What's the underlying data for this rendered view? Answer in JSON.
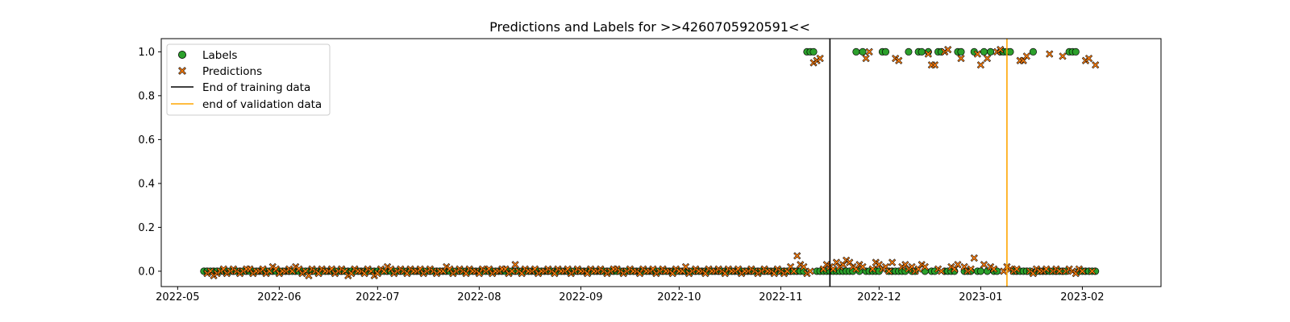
{
  "chart_data": {
    "type": "scatter",
    "title": "Predictions and Labels for >>4260705920591<<",
    "xlabel": "",
    "ylabel": "",
    "x_range": [
      "2022-04-26",
      "2023-02-25"
    ],
    "y_range": [
      -0.07,
      1.06
    ],
    "y_ticks": [
      0.0,
      0.2,
      0.4,
      0.6,
      0.8,
      1.0
    ],
    "y_tick_labels": [
      "0.0",
      "0.2",
      "0.4",
      "0.6",
      "0.8",
      "1.0"
    ],
    "x_ticks": [
      "2022-05-01",
      "2022-06-01",
      "2022-07-01",
      "2022-08-01",
      "2022-09-01",
      "2022-10-01",
      "2022-11-01",
      "2022-12-01",
      "2023-01-01",
      "2023-02-01"
    ],
    "x_tick_labels": [
      "2022-05",
      "2022-06",
      "2022-07",
      "2022-08",
      "2022-09",
      "2022-10",
      "2022-11",
      "2022-12",
      "2023-01",
      "2023-02"
    ],
    "grid": false,
    "legend_position": "top-left",
    "colors": {
      "labels_fill": "#2ca02c",
      "predictions_fill": "#ff7f0e",
      "marker_edge": "#000000",
      "training_line": "#000000",
      "validation_line": "#ffa500"
    },
    "series": [
      {
        "name": "Labels",
        "marker": "circle",
        "color": "#2ca02c",
        "start_date": "2022-05-09",
        "end_date": "2023-02-05",
        "ones": [
          "2022-11-09",
          "2022-11-10",
          "2022-11-11",
          "2022-11-24",
          "2022-11-26",
          "2022-12-02",
          "2022-12-03",
          "2022-12-10",
          "2022-12-13",
          "2022-12-14",
          "2022-12-16",
          "2022-12-19",
          "2022-12-20",
          "2022-12-25",
          "2022-12-26",
          "2022-12-30",
          "2023-01-02",
          "2023-01-04",
          "2023-01-07",
          "2023-01-08",
          "2023-01-09",
          "2023-01-10",
          "2023-01-17",
          "2023-01-28",
          "2023-01-29",
          "2023-01-30"
        ],
        "zero_value": 0.0
      },
      {
        "name": "Predictions",
        "marker": "x",
        "color": "#ff7f0e",
        "start_date": "2022-05-10",
        "end_date": "2023-02-05",
        "high_points": [
          [
            "2022-11-11",
            0.95
          ],
          [
            "2022-11-12",
            0.96
          ],
          [
            "2022-11-13",
            0.97
          ],
          [
            "2022-11-27",
            0.97
          ],
          [
            "2022-11-28",
            1.0
          ],
          [
            "2022-12-06",
            0.97
          ],
          [
            "2022-12-07",
            0.96
          ],
          [
            "2022-12-16",
            0.99
          ],
          [
            "2022-12-17",
            0.94
          ],
          [
            "2022-12-18",
            0.94
          ],
          [
            "2022-12-21",
            1.0
          ],
          [
            "2022-12-22",
            1.01
          ],
          [
            "2022-12-26",
            0.97
          ],
          [
            "2022-12-31",
            0.99
          ],
          [
            "2023-01-01",
            0.94
          ],
          [
            "2023-01-03",
            0.97
          ],
          [
            "2023-01-06",
            1.0
          ],
          [
            "2023-01-07",
            1.01
          ],
          [
            "2023-01-13",
            0.96
          ],
          [
            "2023-01-14",
            0.96
          ],
          [
            "2023-01-15",
            0.98
          ],
          [
            "2023-01-22",
            0.99
          ],
          [
            "2023-01-26",
            0.98
          ],
          [
            "2023-02-02",
            0.96
          ],
          [
            "2023-02-03",
            0.97
          ],
          [
            "2023-02-05",
            0.94
          ]
        ],
        "low_values_first": [
          -0.01,
          0.0,
          -0.02,
          -0.01,
          0.0,
          0.01,
          -0.01,
          0.0,
          0.01,
          0.0,
          -0.01,
          0.0,
          0.01,
          0.01,
          -0.01,
          0.0,
          0.0,
          0.01,
          -0.01,
          0.0,
          0.02,
          0.01,
          -0.01,
          0.0,
          0.0,
          0.01,
          0.0,
          0.02,
          0.01,
          -0.01,
          0.0,
          -0.02,
          0.01,
          0.0,
          -0.01,
          0.01,
          0.0,
          0.0,
          0.01,
          -0.01,
          0.0,
          0.01,
          0.0,
          -0.02,
          -0.01,
          0.01,
          0.0,
          0.0,
          -0.01,
          0.01,
          0.0,
          -0.02,
          -0.01,
          0.01,
          0.0,
          0.02,
          0.01,
          -0.01,
          0.0,
          0.01,
          0.0,
          -0.01,
          0.01,
          0.0,
          0.0,
          0.01,
          -0.01,
          0.0,
          0.01,
          0.0,
          -0.01,
          0.0,
          0.0,
          0.02,
          0.01,
          -0.01,
          0.0,
          0.01,
          0.0,
          -0.01,
          0.01,
          0.0,
          0.0,
          -0.01,
          0.01,
          0.0,
          0.01,
          -0.01,
          0.0,
          0.0,
          0.01,
          0.01,
          -0.01,
          0.0,
          0.03,
          0.0,
          -0.01,
          0.01,
          0.0,
          0.0,
          0.01,
          -0.01,
          0.0,
          0.0,
          0.01,
          0.0,
          -0.01,
          0.01,
          0.0,
          0.0,
          0.01,
          -0.01,
          0.0,
          0.01,
          0.0,
          0.0,
          -0.01,
          0.01,
          0.0,
          0.0,
          0.01,
          0.0,
          -0.01,
          0.0,
          0.01,
          0.01,
          0.0,
          -0.01,
          0.0,
          0.01,
          0.0,
          0.0,
          -0.01,
          0.01,
          0.0,
          0.0,
          0.01,
          -0.01,
          0.0,
          0.01,
          0.0,
          0.0,
          -0.01,
          0.01,
          0.0,
          0.0,
          0.02,
          -0.01,
          0.0,
          0.01,
          0.0,
          0.0,
          -0.01,
          0.01,
          0.0,
          0.0,
          0.01,
          0.0,
          -0.01,
          0.01,
          0.0,
          0.0,
          0.01,
          -0.01,
          0.0,
          0.0,
          0.01,
          0.0,
          -0.01,
          0.0,
          0.01,
          0.0,
          0.0,
          -0.01,
          0.01,
          0.0,
          -0.01,
          0.0,
          0.02,
          0.0,
          0.07,
          0.03,
          0.02,
          -0.01,
          0.0,
          0.01,
          0.03,
          0.02,
          0.01,
          0.04,
          0.02,
          0.03,
          0.05,
          0.04,
          0.02,
          0.01,
          0.03,
          0.02,
          0.01,
          0.04,
          0.03,
          0.01,
          0.02,
          0.0,
          0.04,
          0.02,
          0.03,
          0.01,
          0.02,
          0.0,
          0.01,
          0.03,
          0.02,
          0.01,
          0.0,
          0.02,
          0.01,
          0.03,
          0.02,
          0.0,
          0.01,
          0.06,
          0.03,
          0.02,
          0.01,
          0.0,
          0.02,
          0.01,
          0.0,
          0.01,
          0.0,
          -0.01,
          0.01,
          0.0,
          0.0,
          0.01,
          0.0,
          0.01,
          0.0,
          0.0,
          0.01,
          0.0,
          -0.01,
          0.01,
          0.0,
          0.0,
          0.01,
          0.0,
          0.0,
          -0.01,
          0.0,
          0.01,
          0.0,
          -0.02,
          0.0,
          0.01
        ]
      }
    ],
    "vertical_lines": [
      {
        "name": "End of training data",
        "date": "2022-11-16",
        "color": "#000000"
      },
      {
        "name": "end of validation data",
        "date": "2023-01-09",
        "color": "#ffa500"
      }
    ]
  }
}
